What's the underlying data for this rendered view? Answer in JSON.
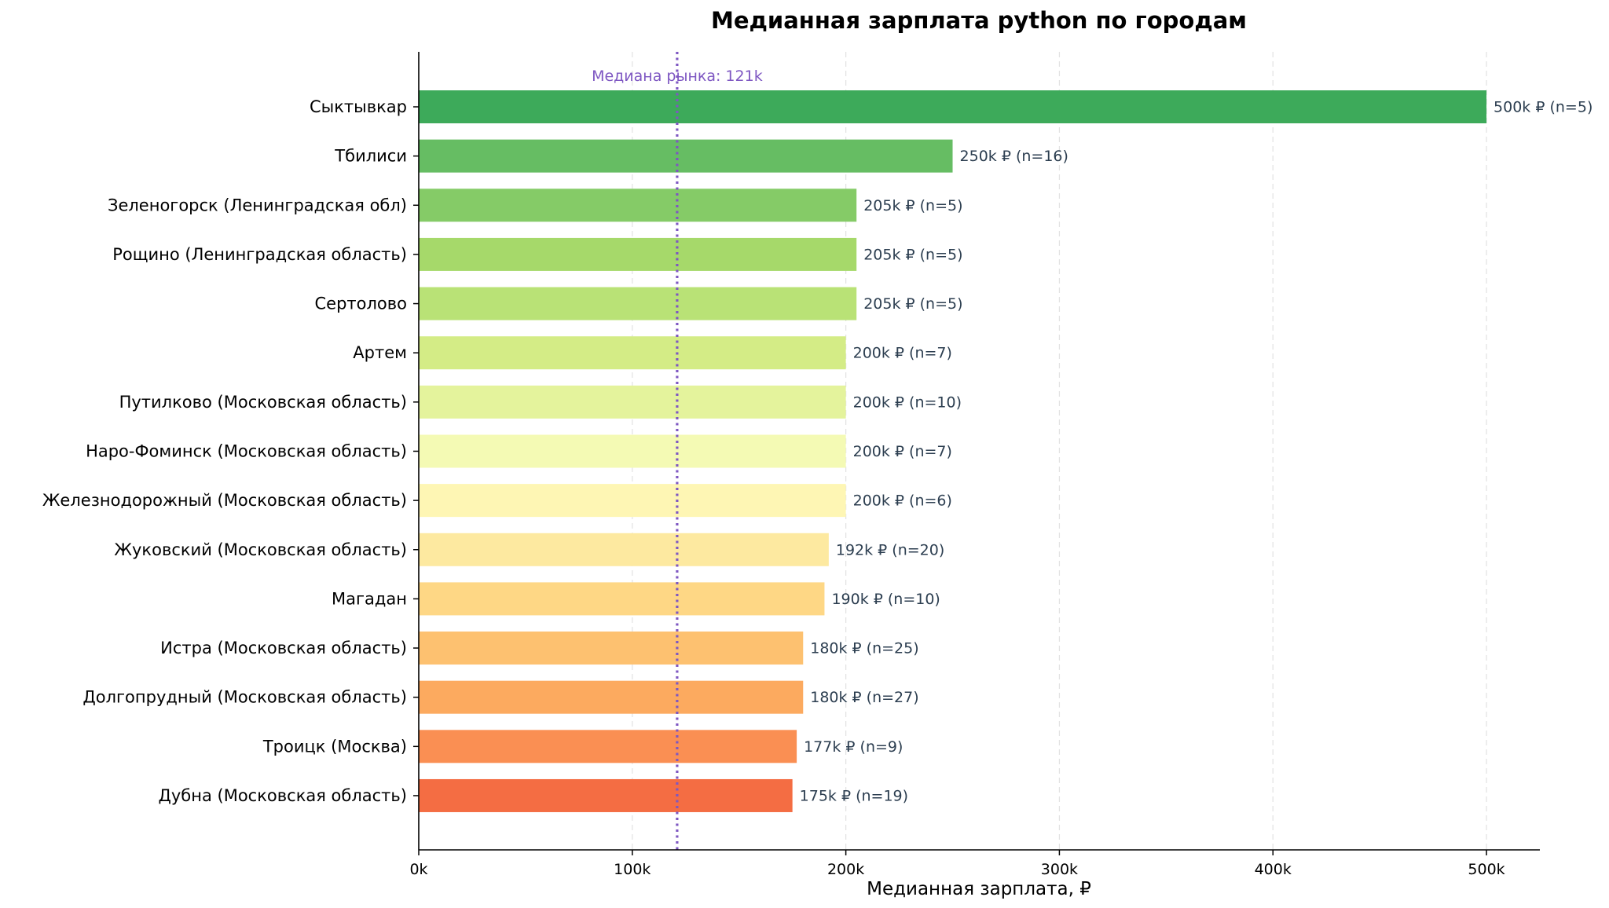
{
  "chart_data": {
    "type": "bar",
    "orientation": "horizontal",
    "title": "Медианная зарплата python по городам",
    "xlabel": "Медианная зарплата, ₽",
    "ylabel": "",
    "xlim": [
      0,
      525000
    ],
    "x_ticks": [
      0,
      100000,
      200000,
      300000,
      400000,
      500000
    ],
    "x_tick_labels": [
      "0k",
      "100k",
      "200k",
      "300k",
      "400k",
      "500k"
    ],
    "grid": "vertical dashed",
    "categories": [
      "Сыктывкар",
      "Тбилиси",
      "Зеленогорск (Ленинградская обл)",
      "Рощино (Ленинградская область)",
      "Сертолово",
      "Артем",
      "Путилково (Московская область)",
      "Наро-Фоминск (Московская область)",
      "Железнодорожный  (Московская область)",
      "Жуковский  (Московская область)",
      "Магадан",
      "Истра (Московская область)",
      "Долгопрудный (Московская область)",
      "Троицк (Москва)",
      "Дубна (Московская область)"
    ],
    "values": [
      500000,
      250000,
      205000,
      205000,
      205000,
      200000,
      200000,
      200000,
      200000,
      192000,
      190000,
      180000,
      180000,
      177000,
      175000
    ],
    "value_labels": [
      "500k ₽  (n=5)",
      "250k ₽  (n=16)",
      "205k ₽  (n=5)",
      "205k ₽  (n=5)",
      "205k ₽  (n=5)",
      "200k ₽  (n=7)",
      "200k ₽  (n=10)",
      "200k ₽  (n=7)",
      "200k ₽  (n=6)",
      "192k ₽  (n=20)",
      "190k ₽  (n=10)",
      "180k ₽  (n=25)",
      "180k ₽  (n=27)",
      "177k ₽  (n=9)",
      "175k ₽  (n=19)"
    ],
    "colors": [
      "#3daa5a",
      "#66bd63",
      "#85cb67",
      "#a6d96a",
      "#b9e276",
      "#d4ec86",
      "#e4f39c",
      "#f4fab4",
      "#fef6b4",
      "#fde9a0",
      "#fed785",
      "#fdc170",
      "#fcaa5f",
      "#fa8f53",
      "#f46d43"
    ],
    "reference_line": {
      "value": 121000,
      "label": "Медиана рынка: 121k",
      "color": "#7e57c2"
    }
  }
}
